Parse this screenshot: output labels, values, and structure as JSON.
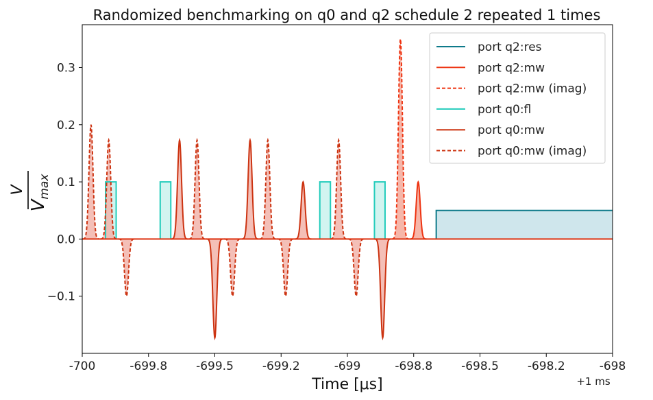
{
  "chart_data": {
    "type": "line",
    "title": "Randomized benchmarking on q0 and q2 schedule 2 repeated 1 times",
    "xlabel": "Time [μs]",
    "ylabel_num": "V",
    "ylabel_den": "V",
    "ylabel_den_sub": "max",
    "x_offset_label": "+1 ms",
    "xlim": [
      -700,
      -698
    ],
    "ylim": [
      -0.2,
      0.375
    ],
    "x_ticks": [
      {
        "value": -700,
        "label": "-700"
      },
      {
        "value": -699.75,
        "label": "-699.8"
      },
      {
        "value": -699.5,
        "label": "-699.5"
      },
      {
        "value": -699.25,
        "label": "-699.2"
      },
      {
        "value": -699,
        "label": "-699"
      },
      {
        "value": -698.75,
        "label": "-698.8"
      },
      {
        "value": -698.5,
        "label": "-698.5"
      },
      {
        "value": -698.25,
        "label": "-698.2"
      },
      {
        "value": -698,
        "label": "-698"
      }
    ],
    "y_ticks": [
      {
        "value": -0.1,
        "label": "−0.1"
      },
      {
        "value": 0.0,
        "label": "0.0"
      },
      {
        "value": 0.1,
        "label": "0.1"
      },
      {
        "value": 0.2,
        "label": "0.2"
      },
      {
        "value": 0.3,
        "label": "0.3"
      }
    ],
    "grid": false,
    "legend_position": "top-right",
    "legend": [
      {
        "label": "port q2:res",
        "color": "#0e7a8a",
        "dashed": false
      },
      {
        "label": "port q2:mw",
        "color": "#ee3311",
        "dashed": false
      },
      {
        "label": "port q2:mw (imag)",
        "color": "#ee3311",
        "dashed": true
      },
      {
        "label": "port q0:fl",
        "color": "#22ccbb",
        "dashed": false
      },
      {
        "label": "port q0:mw",
        "color": "#cc3311",
        "dashed": false
      },
      {
        "label": "port q0:mw (imag)",
        "color": "#cc3311",
        "dashed": true
      }
    ],
    "series": [
      {
        "name": "port q2:res",
        "kind": "rect",
        "color": "#0e7a8a",
        "fill": "#cfe6ec",
        "segments": [
          {
            "start": -698.665,
            "end": -698.0,
            "amplitude": 0.05
          }
        ]
      },
      {
        "name": "port q0:fl",
        "kind": "rect",
        "color": "#22ccbb",
        "fill": "#d2f4f0",
        "segments": [
          {
            "start": -699.912,
            "end": -699.872,
            "amplitude": 0.1
          },
          {
            "start": -699.706,
            "end": -699.666,
            "amplitude": 0.1
          },
          {
            "start": -699.104,
            "end": -699.064,
            "amplitude": 0.1
          },
          {
            "start": -698.898,
            "end": -698.858,
            "amplitude": 0.1
          }
        ]
      },
      {
        "name": "port q2:mw",
        "kind": "gauss",
        "color": "#ee3311",
        "fill": "#f4a99a",
        "dashed": false,
        "pulses": [
          {
            "center": -698.733,
            "amplitude": 0.1
          }
        ]
      },
      {
        "name": "port q2:mw (imag)",
        "kind": "gauss",
        "color": "#ee3311",
        "fill": "#f4a99a",
        "dashed": true,
        "pulses": [
          {
            "center": -698.8,
            "amplitude": 0.35
          }
        ]
      },
      {
        "name": "port q0:mw",
        "kind": "gauss",
        "color": "#cc3311",
        "fill": "#f2b4aa",
        "dashed": false,
        "pulses": [
          {
            "center": -699.633,
            "amplitude": 0.173
          },
          {
            "center": -699.5,
            "amplitude": -0.173
          },
          {
            "center": -699.367,
            "amplitude": 0.173
          },
          {
            "center": -699.167,
            "amplitude": 0.1
          },
          {
            "center": -698.867,
            "amplitude": -0.173
          }
        ]
      },
      {
        "name": "port q0:mw (imag)",
        "kind": "gauss",
        "color": "#cc3311",
        "fill": "#f2b4aa",
        "dashed": true,
        "pulses": [
          {
            "center": -699.967,
            "amplitude": 0.2
          },
          {
            "center": -699.9,
            "amplitude": 0.173
          },
          {
            "center": -699.833,
            "amplitude": -0.1
          },
          {
            "center": -699.567,
            "amplitude": 0.173
          },
          {
            "center": -699.433,
            "amplitude": -0.1
          },
          {
            "center": -699.3,
            "amplitude": 0.173
          },
          {
            "center": -699.233,
            "amplitude": -0.1
          },
          {
            "center": -699.033,
            "amplitude": 0.173
          },
          {
            "center": -698.967,
            "amplitude": -0.1
          }
        ]
      }
    ]
  }
}
